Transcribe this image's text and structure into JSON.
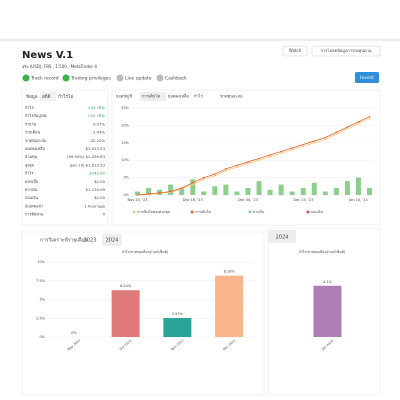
{
  "header": {
    "title": "News V.1",
    "subtitle": "จริง (USD), FBS , 1:500 , MetaTrader 4",
    "badges": [
      "Track record",
      "Trading privileges",
      "Live update",
      "Cashback"
    ],
    "buttons": [
      "Watch",
      "การโหลดข้อมูลการลงทุนตาม"
    ],
    "invest": "Invest"
  },
  "stats": {
    "tabs": [
      "ข้อมูล",
      "สถิติ",
      "กำไรไม่"
    ],
    "rows": [
      [
        "กำไร:",
        "+33.78%"
      ],
      [
        "กำไรสัมบูรณ์:",
        "+22.78%"
      ],
      [
        "รายวัน",
        "0.07%"
      ],
      [
        "รายเดือน",
        "2.43%"
      ],
      [
        "ขาดทุนสะสม",
        "42.22%"
      ],
      [
        "ยอดคงเหลือ",
        "$1,513.53"
      ],
      [
        "ส่วนทุน",
        "(99.90%) $1,299.63"
      ],
      [
        "สูงสุด",
        "(Jan 10) $1,513.53"
      ],
      [
        "กำไร",
        "$242.62"
      ],
      [
        "ดอกเบี้ย",
        "$0.00"
      ],
      [
        "ฝากเงิน",
        "$1,134.09"
      ],
      [
        "ถอนเงิน",
        "$0.00"
      ],
      [
        "อัปเดตแล้ว",
        "1 hour ago"
      ],
      [
        "การติดตาม",
        "0"
      ]
    ]
  },
  "growth_chart": {
    "tabs": [
      "ยอดบัญชี",
      "การเติบโต",
      "ยอดคงเหลือ",
      "กำไร",
      "ขาดทุนสะสม"
    ],
    "categories": [
      "Nov 20, '23",
      null,
      null,
      null,
      null,
      "Dec 16, '23",
      null,
      null,
      null,
      null,
      "Dec 08, '23",
      null,
      null,
      null,
      null,
      "Dec 23, '23",
      null,
      null,
      null,
      null,
      "Jan 10, '24",
      null
    ],
    "series": [
      {
        "name": "การเติบโตของส่วนทุน",
        "color": "#f7c77a",
        "values": [
          0,
          0.2,
          0.5,
          0.8,
          1.8,
          3,
          4.5,
          5.5,
          7,
          8,
          9,
          10,
          11,
          12,
          13,
          14,
          15,
          16,
          17.5,
          19,
          20.5,
          22
        ]
      },
      {
        "name": "การเติบโต",
        "color": "#e8642c",
        "values": [
          0,
          0.3,
          0.6,
          1,
          2,
          3.5,
          5,
          6,
          7.5,
          8.5,
          9.5,
          10.5,
          11.5,
          12.5,
          13.5,
          14.5,
          15.5,
          16.5,
          18,
          19.5,
          21,
          22.5
        ]
      },
      {
        "name": "ฝากเงิน",
        "color": "#8ccf8c",
        "values": [
          1,
          2,
          1.5,
          3,
          2,
          4.5,
          1,
          2.5,
          3,
          1,
          2,
          4,
          1.5,
          3,
          1,
          2,
          3.5,
          1,
          2,
          4,
          5,
          2
        ]
      },
      {
        "name": "ถอนเงิน",
        "color": "#e05050"
      }
    ],
    "ylim": [
      0,
      25
    ],
    "yticks": [
      {
        "value": 0,
        "label": "0%"
      },
      {
        "value": 5,
        "label": "5%"
      },
      {
        "value": 10,
        "label": "10%"
      },
      {
        "value": 15,
        "label": "15%"
      },
      {
        "value": 20,
        "label": "20%"
      },
      {
        "value": 25,
        "label": "25%"
      }
    ]
  },
  "monthly": {
    "title": "การวิเคราะห์รายเดือน",
    "tabs": [
      "2023",
      "2024"
    ],
    "chart_title": "กำไร/ขาดทุนเดือน(เปอร์เซ็นต์)",
    "categories": [
      "May 2023",
      "Oct 2023",
      "Nov 2023",
      "Dec 2023"
    ],
    "values": [
      0,
      6.24,
      2.53,
      8.18
    ],
    "value_labels": [
      "0%",
      "6.24%",
      "2.53%",
      "8.18%"
    ],
    "colors": [
      "#e07a7a",
      "#e07a7a",
      "#2aa39a",
      "#f9b48a"
    ],
    "ylim": [
      0,
      10
    ],
    "yticks": [
      {
        "value": 0,
        "label": "0%"
      },
      {
        "value": 2.5,
        "label": "2.5%"
      },
      {
        "value": 5,
        "label": "5%"
      },
      {
        "value": 7.5,
        "label": "7.5%"
      },
      {
        "value": 10,
        "label": "10%"
      }
    ]
  },
  "monthly_2024": {
    "tab": "2024",
    "chart_title": "กำไร/ขาดทุนเดือน(เปอร์เซ็นต์)",
    "categories": [
      "Jan 2024"
    ],
    "values": [
      4.1
    ],
    "value_labels": [
      "4.1%"
    ],
    "color": "#b07cb8",
    "ylim": [
      0,
      6
    ]
  }
}
